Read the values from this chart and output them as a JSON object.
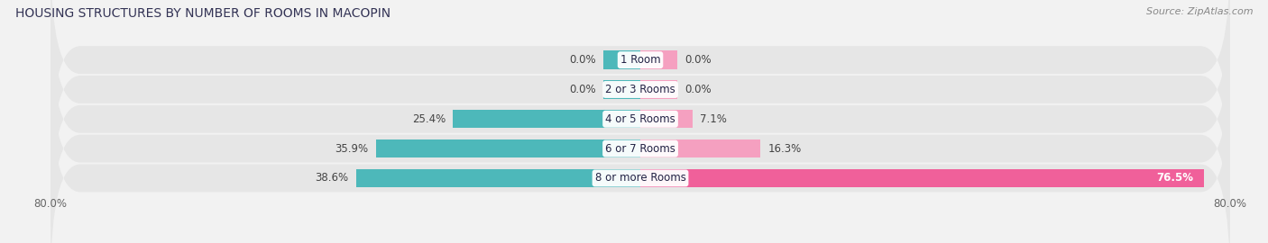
{
  "title": "HOUSING STRUCTURES BY NUMBER OF ROOMS IN MACOPIN",
  "source": "Source: ZipAtlas.com",
  "categories": [
    "1 Room",
    "2 or 3 Rooms",
    "4 or 5 Rooms",
    "6 or 7 Rooms",
    "8 or more Rooms"
  ],
  "owner_values": [
    0.0,
    0.0,
    25.4,
    35.9,
    38.6
  ],
  "renter_values": [
    0.0,
    0.0,
    7.1,
    16.3,
    76.5
  ],
  "owner_color": "#4db8ba",
  "renter_color_light": "#f5a0c0",
  "renter_color_bright": "#f0609a",
  "bar_height": 0.62,
  "xlim_left": -80,
  "xlim_right": 80,
  "background_color": "#f2f2f2",
  "row_bg_color": "#e6e6e6",
  "title_fontsize": 10,
  "source_fontsize": 8,
  "label_fontsize": 8.5,
  "category_fontsize": 8.5,
  "legend_fontsize": 9,
  "min_bar_display": 5.0
}
